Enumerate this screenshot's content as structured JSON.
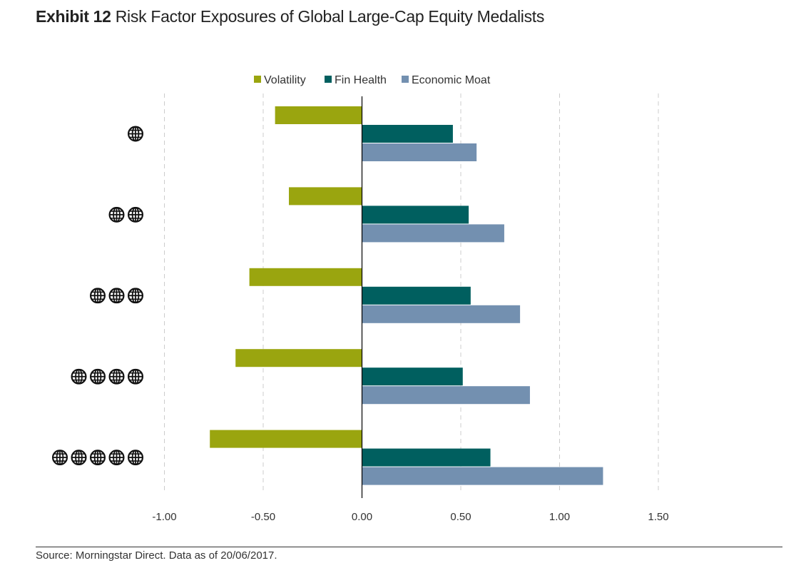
{
  "title": {
    "prefix": "Exhibit 12",
    "text": "Risk Factor Exposures of Global Large-Cap Equity Medalists"
  },
  "source": "Source: Morningstar Direct. Data as of 20/06/2017.",
  "chart_data": {
    "type": "bar",
    "orientation": "horizontal",
    "category_icon": "globe-icon",
    "categories": [
      "1 globe",
      "2 globes",
      "3 globes",
      "4 globes",
      "5 globes"
    ],
    "category_icon_counts": [
      1,
      2,
      3,
      4,
      5
    ],
    "series": [
      {
        "name": "Volatility",
        "color": "#9aa50f",
        "values": [
          -0.44,
          -0.37,
          -0.57,
          -0.64,
          -0.77
        ]
      },
      {
        "name": "Fin Health",
        "color": "#005f5f",
        "values": [
          0.46,
          0.54,
          0.55,
          0.51,
          0.65
        ]
      },
      {
        "name": "Economic Moat",
        "color": "#7390b0",
        "values": [
          0.58,
          0.72,
          0.8,
          0.85,
          1.22
        ]
      }
    ],
    "xlim": [
      -1.0,
      1.5
    ],
    "xticks": [
      -1.0,
      -0.5,
      0.0,
      0.5,
      1.0,
      1.5
    ],
    "xtick_labels": [
      "-1.00",
      "-0.50",
      "0.00",
      "0.50",
      "1.00",
      "1.50"
    ],
    "grid": "vertical-dashed",
    "legend_position": "top-center",
    "xlabel": "",
    "ylabel": ""
  }
}
